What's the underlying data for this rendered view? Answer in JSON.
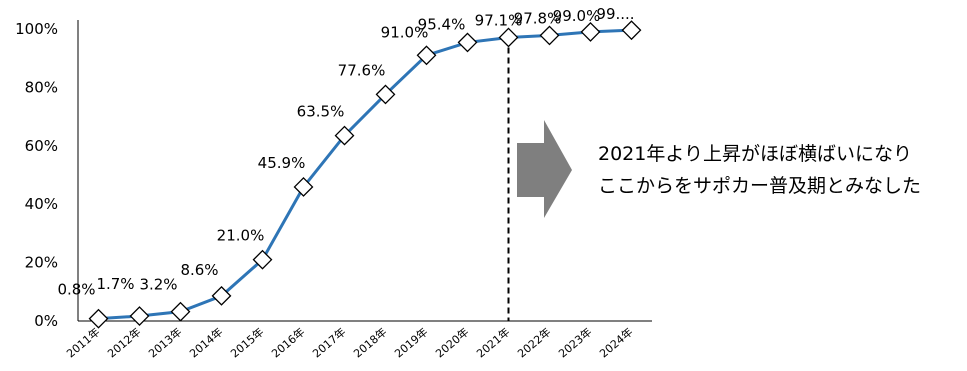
{
  "chart_data": {
    "type": "line",
    "categories": [
      "2011年",
      "2012年",
      "2013年",
      "2014年",
      "2015年",
      "2016年",
      "2017年",
      "2018年",
      "2019年",
      "2020年",
      "2021年",
      "2022年",
      "2023年",
      "2024年"
    ],
    "series": [
      {
        "values": [
          0.8,
          1.7,
          3.2,
          8.6,
          21.0,
          45.9,
          63.5,
          77.6,
          91.0,
          95.4,
          97.1,
          97.8,
          99.0,
          99.6
        ]
      }
    ],
    "data_labels": [
      "0.8%",
      "1.7%",
      "3.2%",
      "8.6%",
      "21.0%",
      "45.9%",
      "63.5%",
      "77.6%",
      "91.0%",
      "95.4%",
      "97.1%",
      "97.8%",
      "99.0%",
      "99...."
    ],
    "yticks": [
      "0%",
      "20%",
      "40%",
      "60%",
      "80%",
      "100%"
    ],
    "ylim": [
      0,
      100
    ],
    "marker": "diamond",
    "line_color": "#2E75B6",
    "reference_line": {
      "category": "2021年",
      "style": "dashed"
    },
    "arrow_color": "#7F7F7F",
    "annotation": [
      "2021年より上昇がほぼ横ばいになり",
      "ここからをサポカー普及期とみなした"
    ]
  }
}
